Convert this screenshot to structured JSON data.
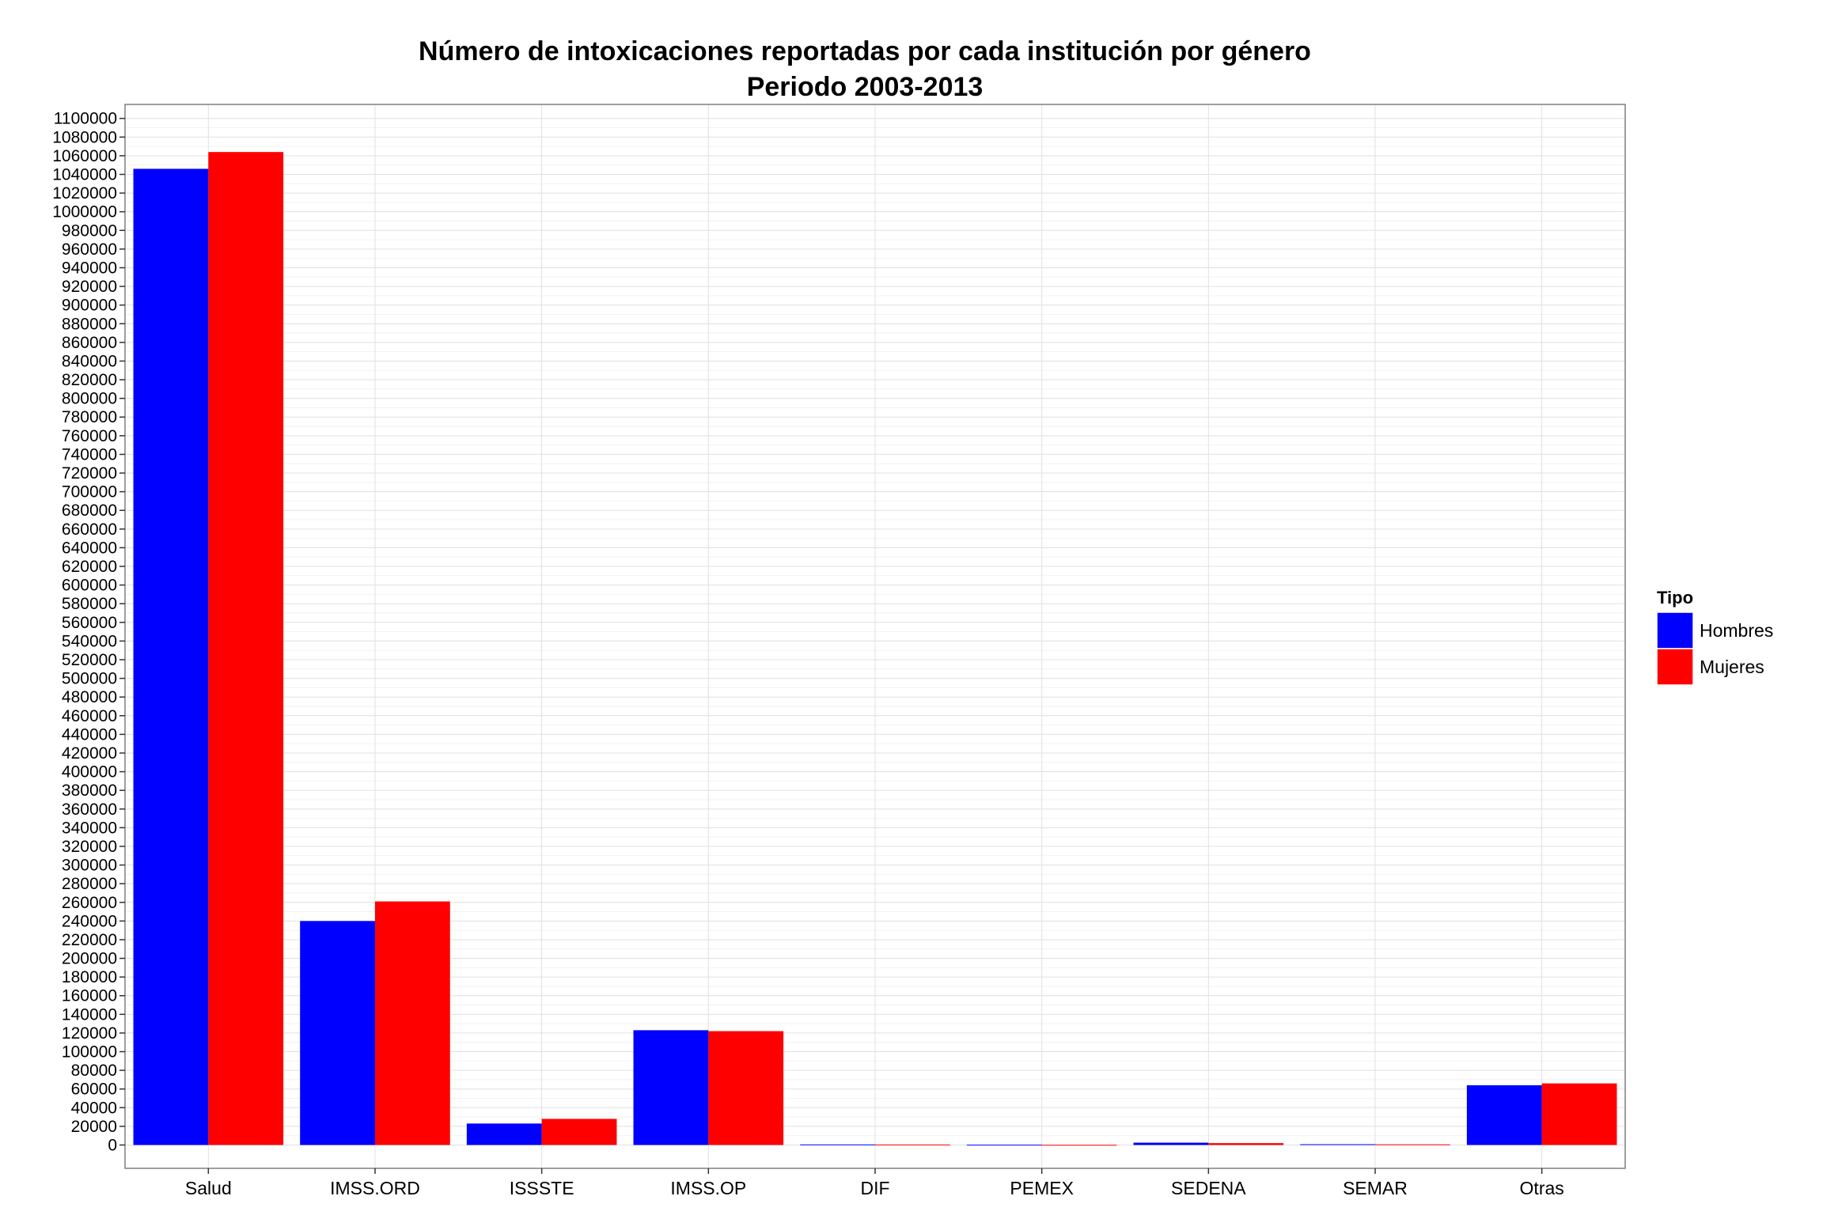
{
  "chart_data": {
    "type": "bar",
    "title": "Número de intoxicaciones reportadas por cada institución por género",
    "subtitle": "Periodo 2003-2013",
    "xlabel": "",
    "ylabel": "",
    "categories": [
      "Salud",
      "IMSS.ORD",
      "ISSSTE",
      "IMSS.OP",
      "DIF",
      "PEMEX",
      "SEDENA",
      "SEMAR",
      "Otras"
    ],
    "series": [
      {
        "name": "Hombres",
        "color": "#0000ff",
        "values": [
          1046000,
          240000,
          23000,
          123000,
          600,
          300,
          2500,
          800,
          64000
        ]
      },
      {
        "name": "Mujeres",
        "color": "#ff0000",
        "values": [
          1064000,
          261000,
          28000,
          122000,
          500,
          200,
          2000,
          700,
          66000
        ]
      }
    ],
    "ylim": [
      -25000,
      1115000
    ],
    "yticks": [
      0,
      20000,
      40000,
      60000,
      80000,
      100000,
      120000,
      140000,
      160000,
      180000,
      200000,
      220000,
      240000,
      260000,
      280000,
      300000,
      320000,
      340000,
      360000,
      380000,
      400000,
      420000,
      440000,
      460000,
      480000,
      500000,
      520000,
      540000,
      560000,
      580000,
      600000,
      620000,
      640000,
      660000,
      680000,
      700000,
      720000,
      740000,
      760000,
      780000,
      800000,
      820000,
      840000,
      860000,
      880000,
      900000,
      920000,
      940000,
      960000,
      980000,
      1000000,
      1020000,
      1040000,
      1060000,
      1080000,
      1100000
    ],
    "grid": true,
    "legend": {
      "title": "Tipo",
      "placement": "right"
    }
  }
}
